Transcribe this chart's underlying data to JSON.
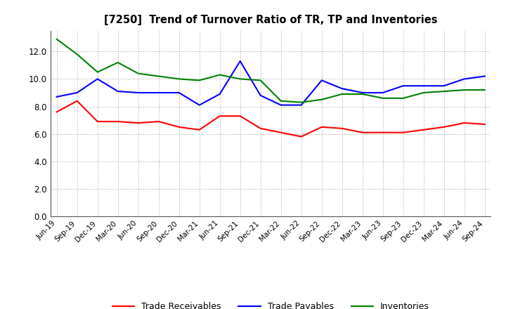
{
  "title": "[7250]  Trend of Turnover Ratio of TR, TP and Inventories",
  "labels": [
    "Jun-19",
    "Sep-19",
    "Dec-19",
    "Mar-20",
    "Jun-20",
    "Sep-20",
    "Dec-20",
    "Mar-21",
    "Jun-21",
    "Sep-21",
    "Dec-21",
    "Mar-22",
    "Jun-22",
    "Sep-22",
    "Dec-22",
    "Mar-23",
    "Jun-23",
    "Sep-23",
    "Dec-23",
    "Mar-24",
    "Jun-24",
    "Sep-24"
  ],
  "trade_receivables": [
    7.6,
    8.4,
    6.9,
    6.9,
    6.8,
    6.9,
    6.5,
    6.3,
    7.3,
    7.3,
    6.4,
    6.1,
    5.8,
    6.5,
    6.4,
    6.1,
    6.1,
    6.1,
    6.3,
    6.5,
    6.8,
    6.7
  ],
  "trade_payables": [
    8.7,
    9.0,
    10.0,
    9.1,
    9.0,
    9.0,
    9.0,
    8.1,
    8.9,
    11.3,
    8.8,
    8.1,
    8.1,
    9.9,
    9.3,
    9.0,
    9.0,
    9.5,
    9.5,
    9.5,
    10.0,
    10.2
  ],
  "inventories": [
    12.9,
    11.8,
    10.5,
    11.2,
    10.4,
    10.2,
    10.0,
    9.9,
    10.3,
    10.0,
    9.9,
    8.4,
    8.3,
    8.5,
    8.9,
    8.9,
    8.6,
    8.6,
    9.0,
    9.1,
    9.2,
    9.2
  ],
  "ylim": [
    0.0,
    13.5
  ],
  "yticks": [
    0.0,
    2.0,
    4.0,
    6.0,
    8.0,
    10.0,
    12.0
  ],
  "tr_color": "#ff0000",
  "tp_color": "#0000ff",
  "inv_color": "#008000",
  "background_color": "#ffffff",
  "legend_labels": [
    "Trade Receivables",
    "Trade Payables",
    "Inventories"
  ],
  "grid_color": "#999999"
}
